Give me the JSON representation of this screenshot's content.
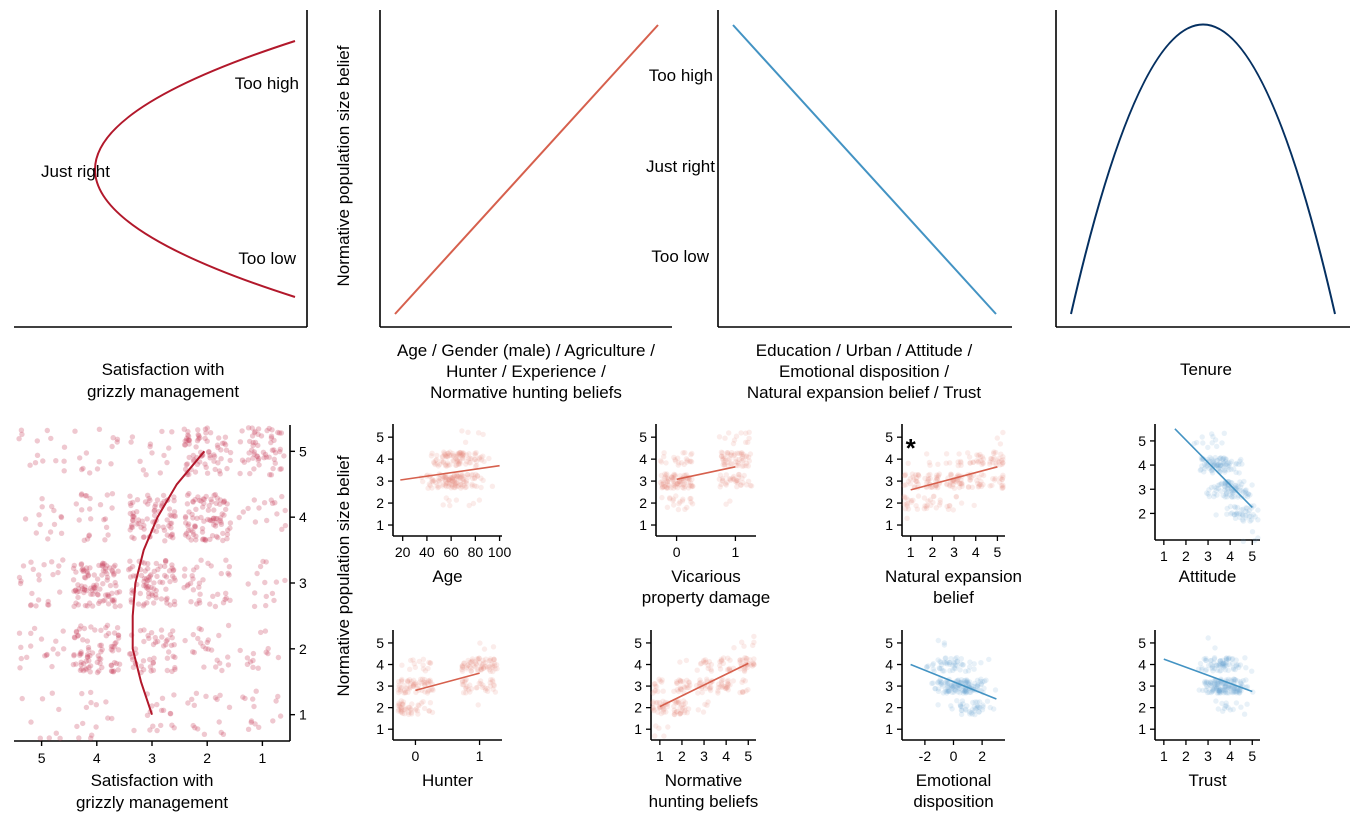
{
  "colors": {
    "red": "#b2182b",
    "orange": "#d6604d",
    "blue": "#4393c3",
    "navy": "#053061",
    "pt_red": "#c94a64",
    "pt_orange": "#e6887a",
    "pt_blue": "#6ea6d1"
  },
  "chart_data": [
    {
      "id": "top-satisfaction",
      "type": "line",
      "xlabel": "Satisfaction with grizzly management",
      "xlabel_lines": [
        "Satisfaction with",
        "grizzly management"
      ],
      "annotations": [
        "Too high",
        "Just right",
        "Too low"
      ],
      "shape": "sideways-parabola",
      "color": "#b2182b"
    },
    {
      "id": "top-positive",
      "type": "line",
      "ylabel": "Normative population size belief",
      "xlabel_lines": [
        "Age / Gender (male) / Agriculture /",
        "Hunter / Experience /",
        "Normative hunting beliefs"
      ],
      "trend": "increasing",
      "color": "#d6604d"
    },
    {
      "id": "top-negative",
      "type": "line",
      "xlabel_lines": [
        "Education / Urban / Attitude /",
        "Emotional disposition /",
        "Natural expansion belief / Trust"
      ],
      "ytick_labels": [
        "Too high",
        "Just right",
        "Too low"
      ],
      "trend": "decreasing",
      "color": "#4393c3"
    },
    {
      "id": "top-tenure",
      "type": "line",
      "xlabel_lines": [
        "Tenure"
      ],
      "shape": "inverted-parabola",
      "color": "#053061"
    },
    {
      "id": "satisfaction-scatter",
      "type": "scatter",
      "xlabel_lines": [
        "Satisfaction with",
        "grizzly management"
      ],
      "ylabel": "Normative population size belief",
      "x_ticks": [
        5,
        4,
        3,
        2,
        1
      ],
      "y_ticks": [
        1,
        2,
        3,
        4,
        5
      ],
      "x_reversed": true,
      "xlim": [
        0.5,
        5.5
      ],
      "ylim": [
        0.6,
        5.4
      ],
      "fit": [
        [
          3.0,
          1.0
        ],
        [
          3.2,
          1.5
        ],
        [
          3.35,
          2.0
        ],
        [
          3.35,
          2.5
        ],
        [
          3.3,
          3.0
        ],
        [
          3.15,
          3.5
        ],
        [
          2.9,
          4.0
        ],
        [
          2.55,
          4.5
        ],
        [
          2.05,
          5.0
        ]
      ],
      "cells": [
        {
          "x": 1,
          "y": 1,
          "d": 0.3
        },
        {
          "x": 1,
          "y": 2,
          "d": 0.3
        },
        {
          "x": 1,
          "y": 3,
          "d": 0.3
        },
        {
          "x": 1,
          "y": 4,
          "d": 0.35
        },
        {
          "x": 1,
          "y": 5,
          "d": 1.3
        },
        {
          "x": 2,
          "y": 1,
          "d": 0.35
        },
        {
          "x": 2,
          "y": 2,
          "d": 0.5
        },
        {
          "x": 2,
          "y": 3,
          "d": 0.8
        },
        {
          "x": 2,
          "y": 4,
          "d": 2.0
        },
        {
          "x": 2,
          "y": 5,
          "d": 1.6
        },
        {
          "x": 3,
          "y": 1,
          "d": 0.4
        },
        {
          "x": 3,
          "y": 2,
          "d": 1.1
        },
        {
          "x": 3,
          "y": 3,
          "d": 1.8
        },
        {
          "x": 3,
          "y": 4,
          "d": 1.7
        },
        {
          "x": 3,
          "y": 5,
          "d": 0.3
        },
        {
          "x": 4,
          "y": 1,
          "d": 0.3
        },
        {
          "x": 4,
          "y": 2,
          "d": 1.8
        },
        {
          "x": 4,
          "y": 3,
          "d": 2.2
        },
        {
          "x": 4,
          "y": 4,
          "d": 0.5
        },
        {
          "x": 4,
          "y": 5,
          "d": 0.3
        },
        {
          "x": 5,
          "y": 1,
          "d": 0.2
        },
        {
          "x": 5,
          "y": 2,
          "d": 0.4
        },
        {
          "x": 5,
          "y": 3,
          "d": 0.5
        },
        {
          "x": 5,
          "y": 4,
          "d": 0.3
        },
        {
          "x": 5,
          "y": 5,
          "d": 0.3
        }
      ]
    },
    {
      "id": "age",
      "type": "scatter",
      "xlabel_lines": [
        "Age"
      ],
      "x_ticks": [
        20,
        40,
        60,
        80,
        100
      ],
      "xlim": [
        12,
        102
      ],
      "xdist": "continuous",
      "x_center": [
        45,
        80
      ],
      "y_ticks": [
        1,
        2,
        3,
        4,
        5
      ],
      "ylim": [
        0.5,
        5.6
      ],
      "fit": [
        [
          18,
          3.05
        ],
        [
          100,
          3.7
        ]
      ],
      "color": "orange"
    },
    {
      "id": "vicarious",
      "type": "scatter",
      "xlabel_lines": [
        "Vicarious",
        "property damage"
      ],
      "x_ticks": [
        0,
        1
      ],
      "xlim": [
        -0.35,
        1.35
      ],
      "xdist": "discrete",
      "y_ticks": [
        1,
        2,
        3,
        4,
        5
      ],
      "ylim": [
        0.5,
        5.6
      ],
      "fit": [
        [
          0,
          3.08
        ],
        [
          1,
          3.65
        ]
      ],
      "color": "orange"
    },
    {
      "id": "natural-expansion",
      "type": "scatter",
      "xlabel_lines": [
        "Natural expansion",
        "belief"
      ],
      "x_ticks": [
        1,
        2,
        3,
        4,
        5
      ],
      "xlim": [
        0.6,
        5.35
      ],
      "xdist": "discrete",
      "y_ticks": [
        1,
        2,
        3,
        4,
        5
      ],
      "ylim": [
        0.5,
        5.6
      ],
      "fit": [
        [
          1,
          2.6
        ],
        [
          5,
          3.65
        ]
      ],
      "color": "orange",
      "annotation": "*"
    },
    {
      "id": "attitude",
      "type": "scatter",
      "xlabel_lines": [
        "Attitude"
      ],
      "x_ticks": [
        1,
        2,
        3,
        4,
        5
      ],
      "xlim": [
        0.6,
        5.35
      ],
      "xdist": "continuous",
      "x_center": [
        3.0,
        4.8
      ],
      "y_ticks": [
        2,
        3,
        4,
        5
      ],
      "ylim": [
        0.9,
        5.7
      ],
      "fit": [
        [
          1.5,
          5.5
        ],
        [
          5,
          2.25
        ]
      ],
      "color": "blue"
    },
    {
      "id": "hunter",
      "type": "scatter",
      "xlabel_lines": [
        "Hunter"
      ],
      "x_ticks": [
        0,
        1
      ],
      "xlim": [
        -0.35,
        1.35
      ],
      "xdist": "discrete",
      "y_ticks": [
        1,
        2,
        3,
        4,
        5
      ],
      "ylim": [
        0.5,
        5.6
      ],
      "fit": [
        [
          0,
          2.8
        ],
        [
          1,
          3.6
        ]
      ],
      "color": "orange"
    },
    {
      "id": "normative-hunting",
      "type": "scatter",
      "xlabel_lines": [
        "Normative",
        "hunting beliefs"
      ],
      "x_ticks": [
        1,
        2,
        3,
        4,
        5
      ],
      "xlim": [
        0.6,
        5.35
      ],
      "xdist": "discrete",
      "y_ticks": [
        1,
        2,
        3,
        4,
        5
      ],
      "ylim": [
        0.5,
        5.6
      ],
      "fit": [
        [
          1,
          2.05
        ],
        [
          5,
          4.05
        ]
      ],
      "color": "orange"
    },
    {
      "id": "emotional-disposition",
      "type": "scatter",
      "xlabel_lines": [
        "Emotional",
        "disposition"
      ],
      "x_ticks": [
        -2,
        0,
        2
      ],
      "xlim": [
        -3.6,
        3.6
      ],
      "xdist": "continuous",
      "x_center": [
        -1,
        2
      ],
      "y_ticks": [
        1,
        2,
        3,
        4,
        5
      ],
      "ylim": [
        0.5,
        5.6
      ],
      "fit": [
        [
          -3.0,
          4.0
        ],
        [
          3.0,
          2.4
        ]
      ],
      "color": "blue"
    },
    {
      "id": "trust",
      "type": "scatter",
      "xlabel_lines": [
        "Trust"
      ],
      "x_ticks": [
        1,
        2,
        3,
        4,
        5
      ],
      "xlim": [
        0.6,
        5.35
      ],
      "xdist": "continuous",
      "x_center": [
        3,
        4.5
      ],
      "y_ticks": [
        1,
        2,
        3,
        4,
        5
      ],
      "ylim": [
        0.5,
        5.6
      ],
      "fit": [
        [
          1,
          4.25
        ],
        [
          5,
          2.75
        ]
      ],
      "color": "blue"
    }
  ]
}
